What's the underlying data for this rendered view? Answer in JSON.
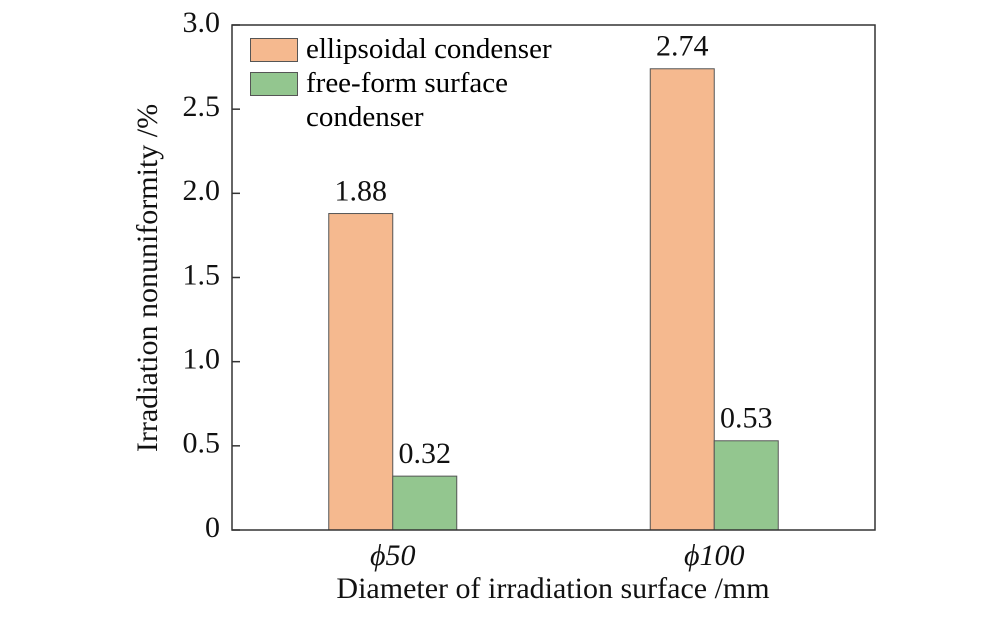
{
  "chart_data": {
    "type": "bar",
    "categories": [
      "ϕ50",
      "ϕ100"
    ],
    "series": [
      {
        "name": "ellipsoidal condenser",
        "color": "#f5b98f",
        "values": [
          1.88,
          2.74
        ]
      },
      {
        "name": "free-form surface condenser",
        "color": "#93c68f",
        "values": [
          0.32,
          0.53
        ]
      }
    ],
    "xlabel": "Diameter of irradiation surface /mm",
    "ylabel": "Irradiation nonuniformity /%",
    "ylim": [
      0,
      3
    ],
    "yticks": [
      0,
      0.5,
      {
        "value": 1,
        "label": "1.0"
      },
      1.5,
      {
        "value": 2,
        "label": "2.0"
      },
      2.5,
      {
        "value": 3,
        "label": "3.0"
      }
    ],
    "legend": "upper left",
    "grid": false
  }
}
